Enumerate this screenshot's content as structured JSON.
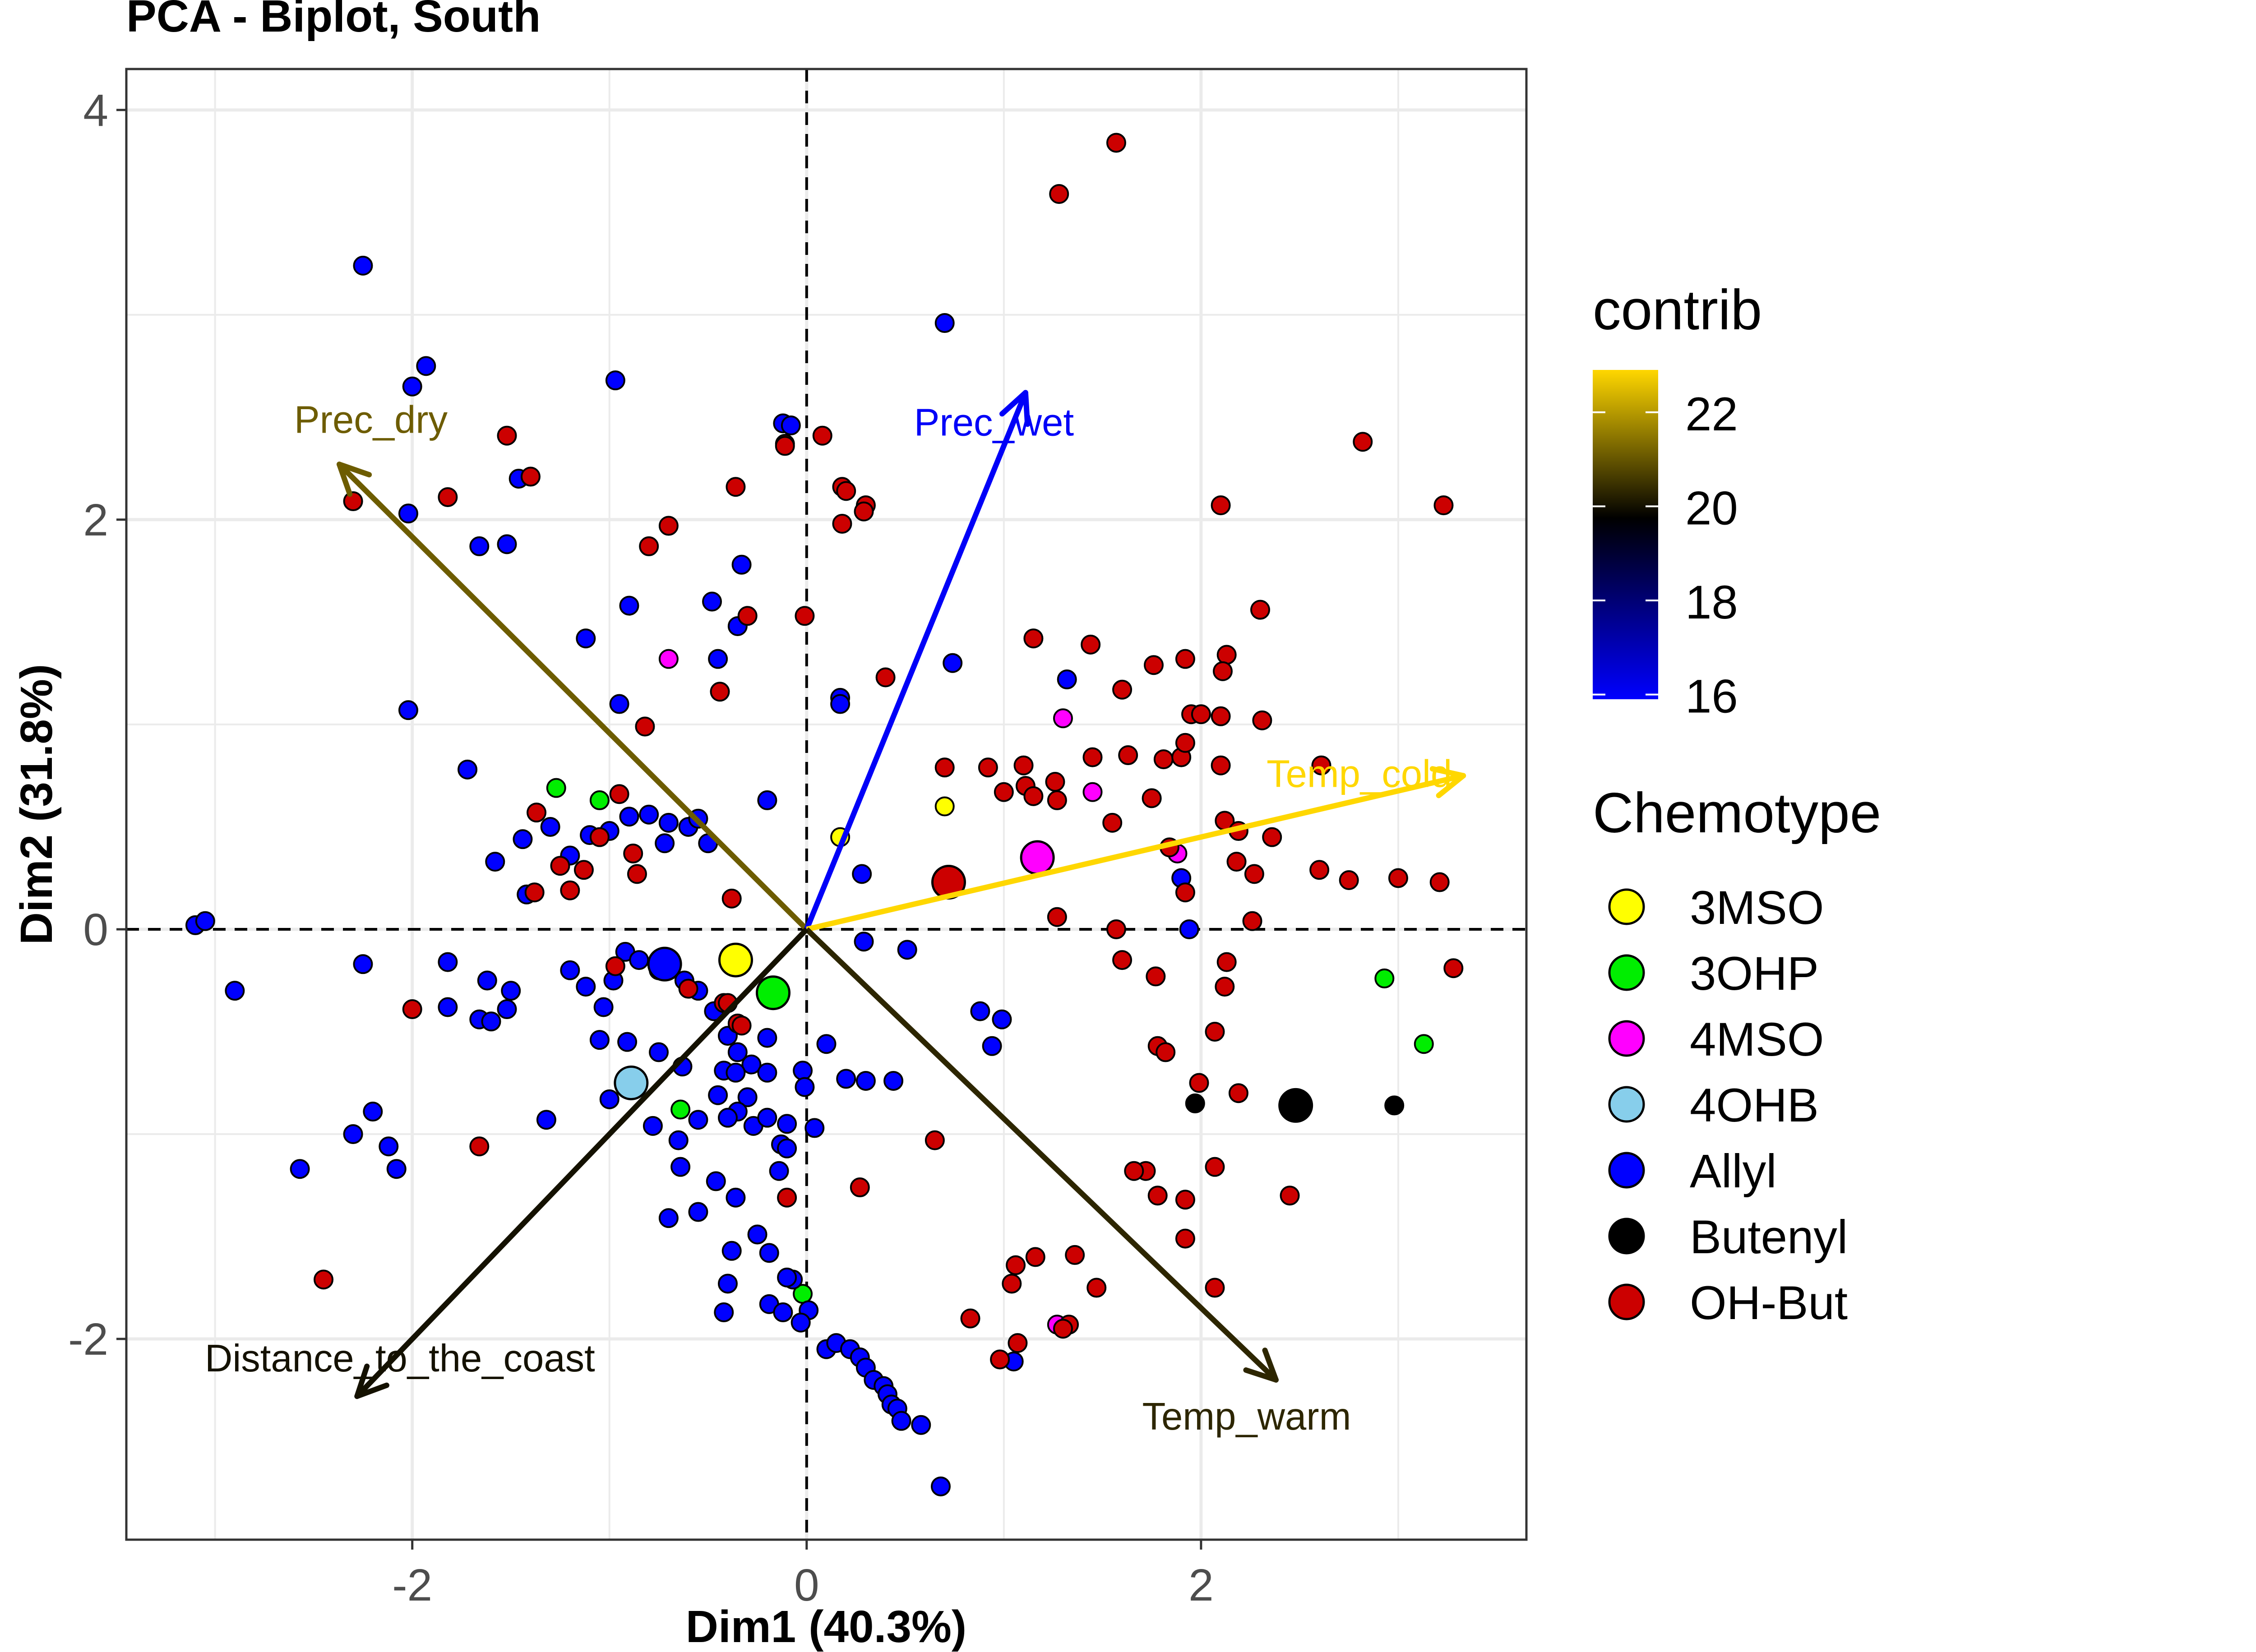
{
  "chart_data": {
    "type": "scatter",
    "title": "PCA - Biplot, South",
    "xlabel": "Dim1 (40.3%)",
    "ylabel": "Dim2 (31.8%)",
    "xlim": [
      -3.45,
      3.65
    ],
    "ylim": [
      -2.98,
      4.2
    ],
    "xticks": [
      -2,
      0,
      2
    ],
    "yticks": [
      -2,
      0,
      2,
      4
    ],
    "xtick_labels": [
      "-2",
      "0",
      "2"
    ],
    "ytick_labels": [
      "-2",
      "0",
      "2",
      "4"
    ],
    "grid": true,
    "reference_lines": "dashed lines at x=0 and y=0",
    "legend_contrib": {
      "title": "contrib",
      "ticks": [
        16,
        18,
        20,
        22
      ],
      "tick_labels": [
        "16",
        "18",
        "20",
        "22"
      ],
      "range": [
        15.9,
        22.9
      ],
      "gradient": [
        "#0000ff",
        "#000000",
        "#ffd700"
      ]
    },
    "legend_chemotype": {
      "title": "Chemotype",
      "placement": "right"
    },
    "chemotype_colors": {
      "3MSO": "#ffff00",
      "3OHP": "#00ee00",
      "4MSO": "#ff00ff",
      "4OHB": "#87ceeb",
      "Allyl": "#0000ff",
      "Butenyl": "#000000",
      "OH-But": "#cc0000"
    },
    "series": [
      {
        "name": "3MSO",
        "points": [
          [
            0.17,
            0.45
          ],
          [
            0.7,
            0.6
          ]
        ]
      },
      {
        "name": "3OHP",
        "points": [
          [
            -1.27,
            0.69
          ],
          [
            -1.05,
            0.63
          ],
          [
            -0.64,
            -0.88
          ],
          [
            -0.02,
            -1.78
          ],
          [
            2.93,
            -0.24
          ],
          [
            3.13,
            -0.56
          ]
        ]
      },
      {
        "name": "4MSO",
        "points": [
          [
            -0.7,
            1.32
          ],
          [
            1.3,
            1.03
          ],
          [
            1.45,
            0.67
          ],
          [
            1.88,
            0.37
          ],
          [
            1.27,
            -1.93
          ]
        ]
      },
      {
        "name": "4OHB",
        "points": []
      },
      {
        "name": "Allyl",
        "points": [
          [
            -3.1,
            0.02
          ],
          [
            -3.05,
            0.04
          ],
          [
            -2.9,
            -0.3
          ],
          [
            -2.25,
            3.24
          ],
          [
            -2.0,
            2.65
          ],
          [
            -1.93,
            2.75
          ],
          [
            -2.02,
            2.03
          ],
          [
            -2.02,
            1.07
          ],
          [
            -1.72,
            0.78
          ],
          [
            -1.52,
            1.88
          ],
          [
            -1.46,
            2.2
          ],
          [
            -1.66,
            1.87
          ],
          [
            -0.97,
            2.68
          ],
          [
            -0.9,
            1.58
          ],
          [
            -1.12,
            1.42
          ],
          [
            -0.95,
            1.1
          ],
          [
            -0.48,
            1.6
          ],
          [
            -0.35,
            1.48
          ],
          [
            -0.45,
            1.32
          ],
          [
            -0.33,
            1.78
          ],
          [
            -1.58,
            0.33
          ],
          [
            -1.44,
            0.44
          ],
          [
            -1.3,
            0.5
          ],
          [
            -1.2,
            0.36
          ],
          [
            -1.1,
            0.46
          ],
          [
            -1.0,
            0.48
          ],
          [
            -0.9,
            0.55
          ],
          [
            -0.8,
            0.56
          ],
          [
            -0.7,
            0.52
          ],
          [
            -0.72,
            0.42
          ],
          [
            -0.6,
            0.5
          ],
          [
            -0.55,
            0.54
          ],
          [
            -0.5,
            0.42
          ],
          [
            -1.42,
            0.17
          ],
          [
            -0.2,
            0.63
          ],
          [
            -2.25,
            -0.17
          ],
          [
            -1.82,
            -0.16
          ],
          [
            -1.82,
            -0.38
          ],
          [
            -1.62,
            -0.25
          ],
          [
            -1.66,
            -0.44
          ],
          [
            -1.6,
            -0.45
          ],
          [
            -1.52,
            -0.39
          ],
          [
            -1.5,
            -0.3
          ],
          [
            -1.2,
            -0.2
          ],
          [
            -1.12,
            -0.28
          ],
          [
            -1.03,
            -0.38
          ],
          [
            -0.98,
            -0.25
          ],
          [
            -0.92,
            -0.11
          ],
          [
            -0.85,
            -0.15
          ],
          [
            -0.75,
            -0.2
          ],
          [
            -0.62,
            -0.25
          ],
          [
            -0.55,
            -0.3
          ],
          [
            -1.05,
            -0.54
          ],
          [
            -0.91,
            -0.55
          ],
          [
            -1.0,
            -0.83
          ],
          [
            -0.75,
            -0.6
          ],
          [
            -0.63,
            -0.67
          ],
          [
            -0.47,
            -0.4
          ],
          [
            -0.4,
            -0.52
          ],
          [
            -0.35,
            -0.6
          ],
          [
            -0.28,
            -0.66
          ],
          [
            -0.2,
            -0.53
          ],
          [
            -0.42,
            -0.69
          ],
          [
            -0.36,
            -0.7
          ],
          [
            -0.3,
            -0.82
          ],
          [
            -0.2,
            -0.7
          ],
          [
            -0.45,
            -0.81
          ],
          [
            -0.35,
            -0.89
          ],
          [
            -0.27,
            -0.96
          ],
          [
            -0.2,
            -0.92
          ],
          [
            -0.1,
            -0.95
          ],
          [
            -0.13,
            -1.05
          ],
          [
            -0.02,
            -0.69
          ],
          [
            -0.01,
            -0.77
          ],
          [
            0.04,
            -0.97
          ],
          [
            0.1,
            -0.56
          ],
          [
            0.2,
            -0.73
          ],
          [
            0.3,
            -0.74
          ],
          [
            0.44,
            -0.74
          ],
          [
            -1.32,
            -0.93
          ],
          [
            -0.78,
            -0.96
          ],
          [
            -0.65,
            -1.03
          ],
          [
            -0.55,
            -0.93
          ],
          [
            -0.4,
            -0.92
          ],
          [
            -0.1,
            -1.07
          ],
          [
            -0.64,
            -1.16
          ],
          [
            -0.46,
            -1.23
          ],
          [
            -0.14,
            -1.18
          ],
          [
            -0.36,
            -1.31
          ],
          [
            -0.25,
            -1.49
          ],
          [
            -0.7,
            -1.41
          ],
          [
            -0.55,
            -1.38
          ],
          [
            -0.38,
            -1.57
          ],
          [
            -0.19,
            -1.58
          ],
          [
            -0.07,
            -1.71
          ],
          [
            -0.4,
            -1.73
          ],
          [
            -0.19,
            -1.83
          ],
          [
            -0.12,
            -1.87
          ],
          [
            0.01,
            -1.86
          ],
          [
            -0.42,
            -1.87
          ],
          [
            -0.1,
            -1.7
          ],
          [
            -0.03,
            -1.92
          ],
          [
            0.1,
            -2.05
          ],
          [
            0.15,
            -2.02
          ],
          [
            0.22,
            -2.05
          ],
          [
            0.27,
            -2.09
          ],
          [
            0.3,
            -2.14
          ],
          [
            0.34,
            -2.2
          ],
          [
            0.39,
            -2.23
          ],
          [
            0.41,
            -2.27
          ],
          [
            0.43,
            -2.32
          ],
          [
            0.46,
            -2.34
          ],
          [
            0.48,
            -2.4
          ],
          [
            0.58,
            -2.42
          ],
          [
            0.68,
            -2.72
          ],
          [
            0.29,
            -0.06
          ],
          [
            0.51,
            -0.1
          ],
          [
            -0.12,
            2.47
          ],
          [
            -0.08,
            2.46
          ],
          [
            0.17,
            1.13
          ],
          [
            0.17,
            1.1
          ],
          [
            0.28,
            0.27
          ],
          [
            0.7,
            2.96
          ],
          [
            0.74,
            1.3
          ],
          [
            1.32,
            1.22
          ],
          [
            1.9,
            0.25
          ],
          [
            1.94,
            0.0
          ],
          [
            -2.57,
            -1.17
          ],
          [
            -2.2,
            -0.89
          ],
          [
            -2.3,
            -1.0
          ],
          [
            -2.12,
            -1.06
          ],
          [
            -2.08,
            -1.17
          ],
          [
            0.94,
            -0.57
          ],
          [
            0.88,
            -0.4
          ],
          [
            0.99,
            -0.44
          ],
          [
            1.05,
            -2.11
          ]
        ]
      },
      {
        "name": "Butenyl",
        "points": [
          [
            1.97,
            -0.85
          ],
          [
            2.98,
            -0.86
          ]
        ]
      },
      {
        "name": "OH-But",
        "points": [
          [
            -2.3,
            2.09
          ],
          [
            -1.82,
            2.11
          ],
          [
            -1.52,
            2.41
          ],
          [
            -1.4,
            2.21
          ],
          [
            -0.8,
            1.87
          ],
          [
            -0.7,
            1.97
          ],
          [
            -0.36,
            2.16
          ],
          [
            -0.11,
            2.37
          ],
          [
            -0.11,
            2.36
          ],
          [
            0.08,
            2.41
          ],
          [
            0.18,
            2.16
          ],
          [
            0.2,
            2.14
          ],
          [
            0.3,
            2.07
          ],
          [
            0.29,
            2.04
          ],
          [
            0.18,
            1.98
          ],
          [
            -0.3,
            1.53
          ],
          [
            -0.01,
            1.53
          ],
          [
            0.4,
            1.23
          ],
          [
            -0.44,
            1.16
          ],
          [
            -0.82,
            0.99
          ],
          [
            -1.13,
            0.29
          ],
          [
            -1.05,
            0.45
          ],
          [
            -0.95,
            0.66
          ],
          [
            -0.88,
            0.37
          ],
          [
            -0.86,
            0.27
          ],
          [
            -1.2,
            0.19
          ],
          [
            -1.38,
            0.18
          ],
          [
            -1.25,
            0.31
          ],
          [
            -1.37,
            0.57
          ],
          [
            -0.38,
            0.15
          ],
          [
            -0.42,
            -0.36
          ],
          [
            -0.35,
            -0.46
          ],
          [
            -0.33,
            -0.47
          ],
          [
            -0.4,
            -0.36
          ],
          [
            -0.6,
            -0.29
          ],
          [
            -0.97,
            -0.18
          ],
          [
            -2.0,
            -0.39
          ],
          [
            -1.66,
            -1.06
          ],
          [
            -2.45,
            -1.71
          ],
          [
            0.27,
            -1.26
          ],
          [
            0.65,
            -1.03
          ],
          [
            -0.1,
            -1.31
          ],
          [
            0.7,
            0.79
          ],
          [
            0.92,
            0.79
          ],
          [
            1.0,
            0.67
          ],
          [
            1.11,
            0.7
          ],
          [
            1.1,
            0.8
          ],
          [
            1.26,
            0.72
          ],
          [
            1.27,
            0.63
          ],
          [
            1.15,
            0.65
          ],
          [
            1.45,
            0.84
          ],
          [
            1.55,
            0.52
          ],
          [
            1.63,
            0.85
          ],
          [
            1.75,
            0.64
          ],
          [
            1.81,
            0.83
          ],
          [
            1.9,
            0.84
          ],
          [
            1.92,
            0.91
          ],
          [
            1.95,
            1.05
          ],
          [
            2.0,
            1.05
          ],
          [
            2.1,
            0.8
          ],
          [
            1.84,
            0.4
          ],
          [
            1.92,
            0.18
          ],
          [
            2.12,
            0.53
          ],
          [
            2.19,
            0.48
          ],
          [
            2.18,
            0.33
          ],
          [
            2.27,
            0.27
          ],
          [
            2.26,
            0.04
          ],
          [
            2.13,
            -0.16
          ],
          [
            2.12,
            -0.28
          ],
          [
            2.36,
            0.45
          ],
          [
            2.6,
            0.29
          ],
          [
            2.61,
            0.8
          ],
          [
            2.13,
            1.34
          ],
          [
            2.11,
            1.26
          ],
          [
            2.31,
            1.02
          ],
          [
            2.3,
            1.56
          ],
          [
            2.1,
            1.04
          ],
          [
            1.92,
            1.32
          ],
          [
            1.76,
            1.29
          ],
          [
            1.44,
            1.39
          ],
          [
            1.6,
            1.17
          ],
          [
            1.15,
            1.42
          ],
          [
            2.1,
            2.07
          ],
          [
            2.82,
            2.38
          ],
          [
            3.23,
            2.07
          ],
          [
            2.75,
            0.24
          ],
          [
            3.0,
            0.25
          ],
          [
            3.21,
            0.23
          ],
          [
            3.28,
            -0.19
          ],
          [
            1.27,
            0.06
          ],
          [
            1.57,
            0.0
          ],
          [
            1.6,
            -0.15
          ],
          [
            1.77,
            -0.23
          ],
          [
            1.78,
            -0.57
          ],
          [
            1.82,
            -0.6
          ],
          [
            1.99,
            -0.75
          ],
          [
            2.07,
            -0.5
          ],
          [
            2.19,
            -0.8
          ],
          [
            2.07,
            -1.16
          ],
          [
            2.45,
            -1.3
          ],
          [
            2.07,
            -1.75
          ],
          [
            1.72,
            -1.18
          ],
          [
            1.78,
            -1.3
          ],
          [
            1.66,
            -1.18
          ],
          [
            1.92,
            -1.32
          ],
          [
            1.92,
            -1.51
          ],
          [
            1.47,
            -1.75
          ],
          [
            1.16,
            -1.6
          ],
          [
            1.36,
            -1.59
          ],
          [
            1.04,
            -1.73
          ],
          [
            1.33,
            -1.93
          ],
          [
            1.06,
            -1.64
          ],
          [
            0.83,
            -1.9
          ],
          [
            0.98,
            -2.1
          ],
          [
            1.07,
            -2.02
          ],
          [
            1.3,
            -1.95
          ],
          [
            1.28,
            3.59
          ],
          [
            1.57,
            3.84
          ]
        ]
      }
    ],
    "group_centroids": [
      {
        "name": "3MSO",
        "x": -0.36,
        "y": -0.15
      },
      {
        "name": "3OHP",
        "x": -0.17,
        "y": -0.31
      },
      {
        "name": "4MSO",
        "x": 1.17,
        "y": 0.35
      },
      {
        "name": "4OHB",
        "x": -0.89,
        "y": -0.75
      },
      {
        "name": "Allyl",
        "x": -0.72,
        "y": -0.17
      },
      {
        "name": "Butenyl",
        "x": 2.48,
        "y": -0.86
      },
      {
        "name": "OH-But",
        "x": 0.72,
        "y": 0.23
      }
    ],
    "variables": [
      {
        "label": "Prec_dry",
        "x": -2.37,
        "y": 2.27,
        "contrib": 21.1
      },
      {
        "label": "Prec_wet",
        "x": 1.11,
        "y": 2.62,
        "contrib": 16.0
      },
      {
        "label": "Temp_cold",
        "x": 3.33,
        "y": 0.75,
        "contrib": 22.9
      },
      {
        "label": "Temp_warm",
        "x": 2.38,
        "y": -2.2,
        "contrib": 20.3
      },
      {
        "label": "Distance_to_the_coast",
        "x": -2.28,
        "y": -2.28,
        "contrib": 20.0
      }
    ]
  }
}
